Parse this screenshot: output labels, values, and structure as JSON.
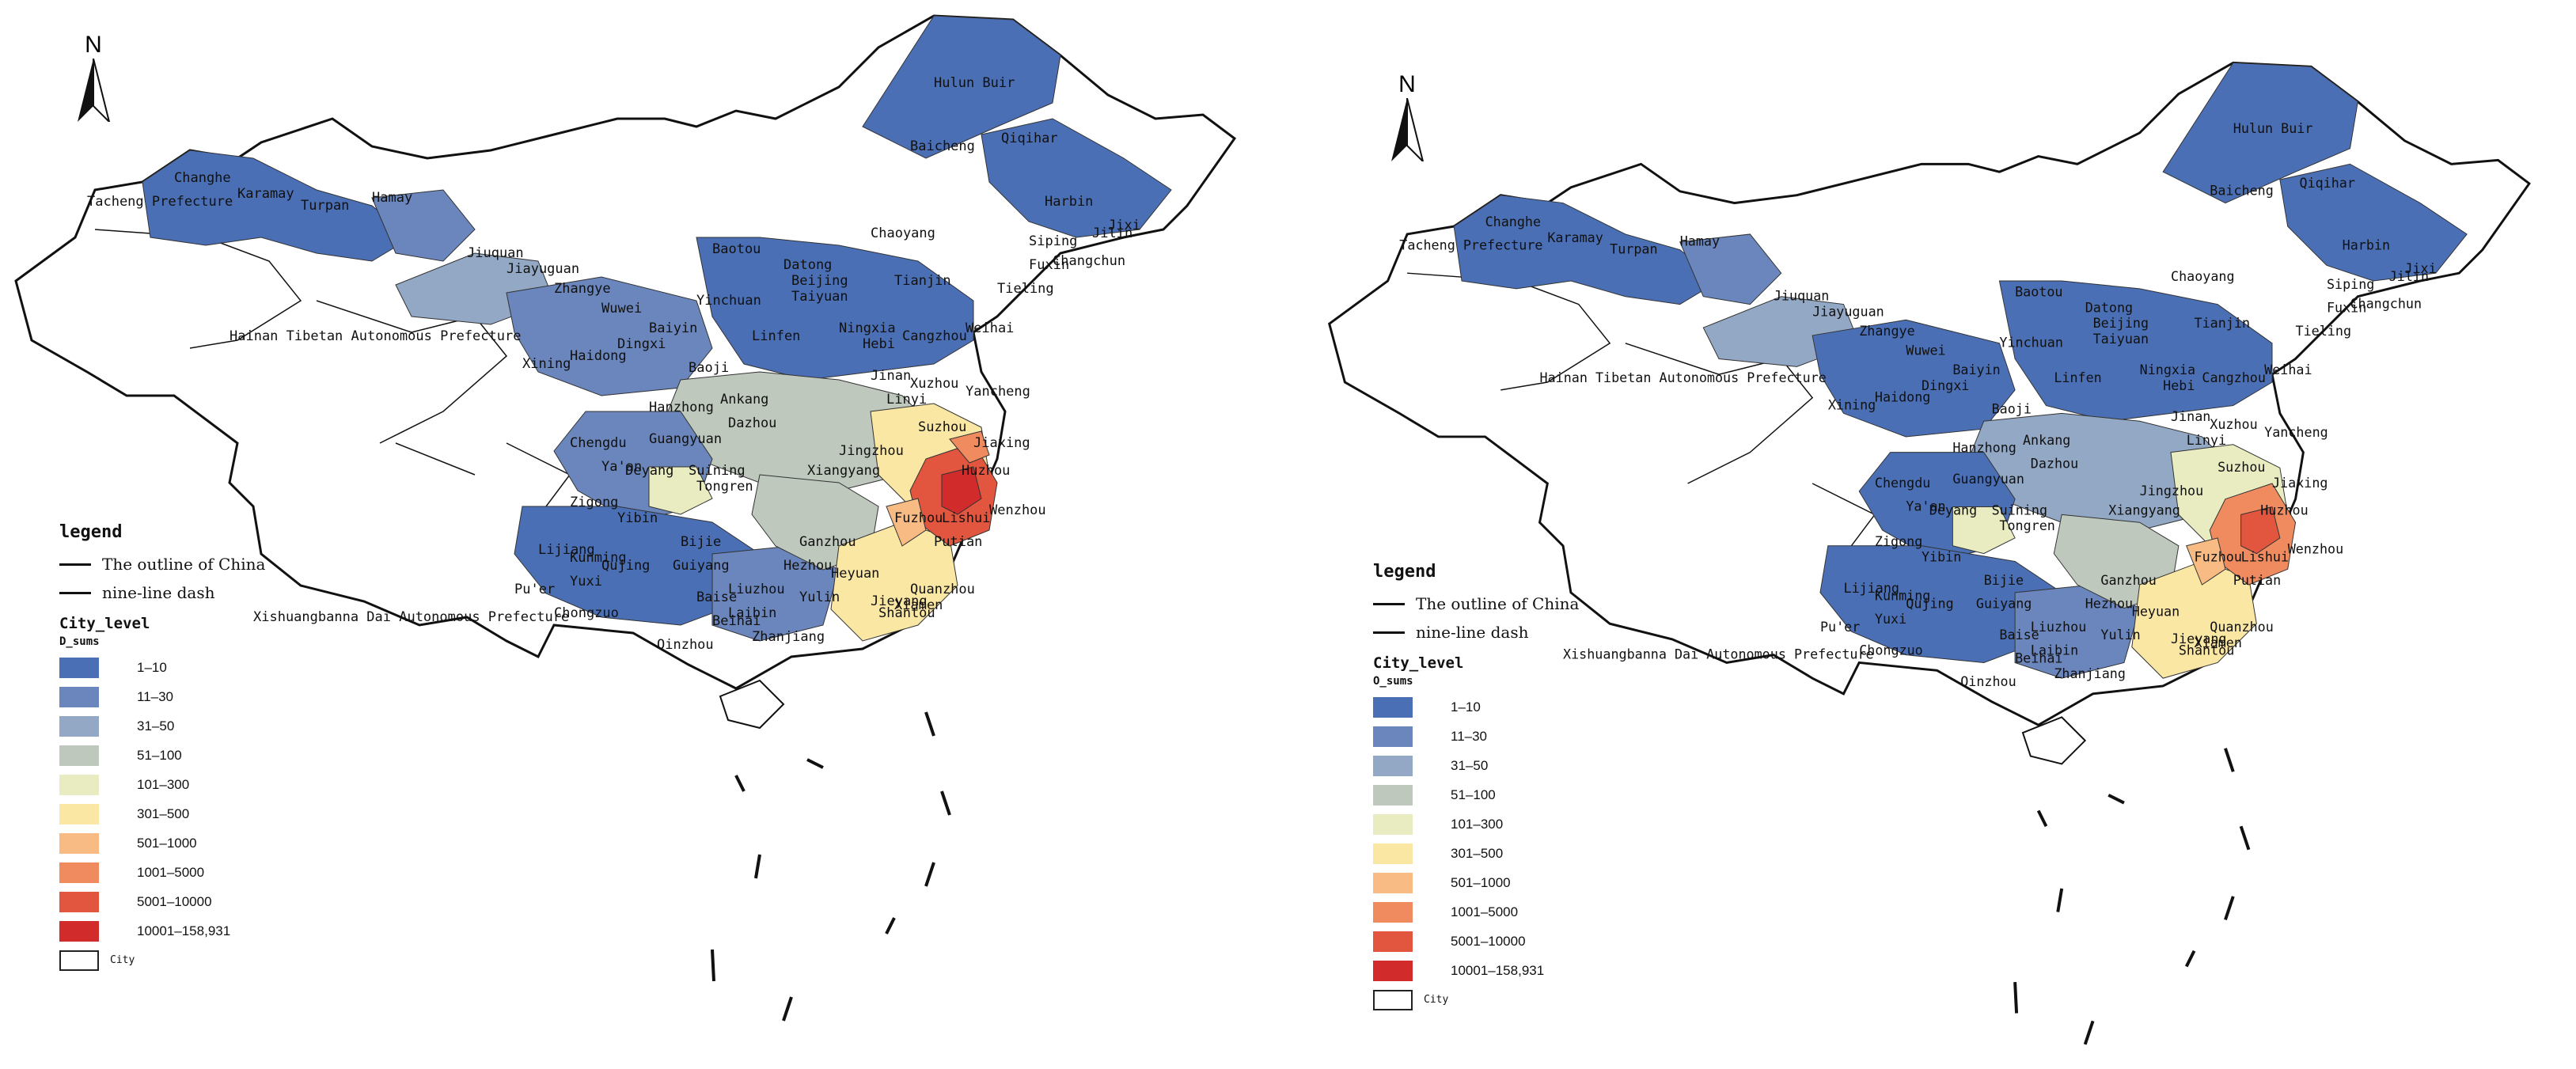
{
  "north_label": "N",
  "legend": {
    "title": "legend",
    "lines": [
      {
        "label": "The outline of China"
      },
      {
        "label": "nine-line dash"
      }
    ],
    "layer_title": "City_level",
    "classes": [
      {
        "label": "1–10",
        "color": "#4a6fb5"
      },
      {
        "label": "11–30",
        "color": "#6a86bd"
      },
      {
        "label": "31–50",
        "color": "#93a8c4"
      },
      {
        "label": "51–100",
        "color": "#bec8bd"
      },
      {
        "label": "101–300",
        "color": "#e8ecc0"
      },
      {
        "label": "301–500",
        "color": "#fbe7a4"
      },
      {
        "label": "501–1000",
        "color": "#f8bb83"
      },
      {
        "label": "1001–5000",
        "color": "#ef8b5f"
      },
      {
        "label": "5001–10000",
        "color": "#e2563f"
      },
      {
        "label": "10001–158,931",
        "color": "#d12b2b"
      }
    ],
    "city_label": "City"
  },
  "maps": [
    {
      "field": "D_sums"
    },
    {
      "field": "O_sums"
    }
  ],
  "place_labels": [
    "Hulun Buir",
    "Baicheng",
    "Qiqihar",
    "Harbin",
    "Jixi",
    "Jilin",
    "Siping",
    "Changchun",
    "Fuxin",
    "Tieling",
    "Chaoyang",
    "Changhe",
    "Karamay",
    "Tacheng Prefecture",
    "Turpan",
    "Hamay",
    "Jiuquan",
    "Jiayuguan",
    "Zhangye",
    "Wuwei",
    "Baiyin",
    "Xining",
    "Haidong",
    "Dingxi",
    "Yinchuan",
    "Hainan Tibetan Autonomous Prefecture",
    "Baotou",
    "Datong",
    "Beijing",
    "Tianjin",
    "Cangzhou",
    "Taiyuan",
    "Ningxia",
    "Linfen",
    "Hebi",
    "Weihai",
    "Jinan",
    "Linyi",
    "Xuzhou",
    "Yancheng",
    "Baoji",
    "Ankang",
    "Hanzhong",
    "Dazhou",
    "Guangyuan",
    "Deyang",
    "Chengdu",
    "Ya'an",
    "Suining",
    "Zigong",
    "Yibin",
    "Tongren",
    "Xiangyang",
    "Suzhou",
    "Jiaxing",
    "Huzhou",
    "Lishui",
    "Wenzhou",
    "Fuzhou",
    "Putian",
    "Quanzhou",
    "Xiamen",
    "Shantou",
    "Jieyang",
    "Heyuan",
    "Ganzhou",
    "Hezhou",
    "Yulin",
    "Liuzhou",
    "Baise",
    "Laibin",
    "Guiyang",
    "Bijie",
    "Qujing",
    "Kunming",
    "Lijiang",
    "Yuxi",
    "Pu'er",
    "Xishuangbanna Dai Autonomous Prefecture",
    "Chongzuo",
    "Beihai",
    "Qinzhou",
    "Zhanjiang",
    "Jingzhou"
  ]
}
